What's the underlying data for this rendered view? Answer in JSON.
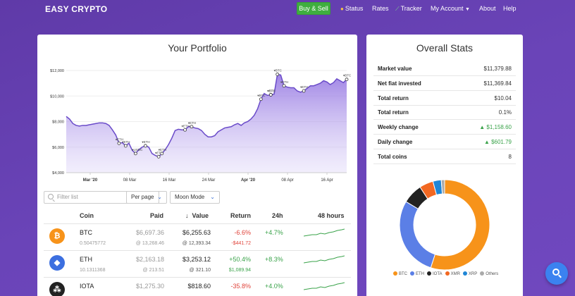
{
  "nav": {
    "brand": "EASY CRYPTO",
    "buy_sell": "Buy & Sell",
    "status": "Status",
    "rates": "Rates",
    "tracker": "Tracker",
    "my_account": "My Account",
    "about": "About",
    "help": "Help"
  },
  "portfolio": {
    "title": "Your Portfolio",
    "filter_placeholder": "Filter list",
    "per_page": "Per page",
    "moon_mode": "Moon Mode",
    "columns": {
      "coin": "Coin",
      "paid": "Paid",
      "value": "Value",
      "return": "Return",
      "h24": "24h",
      "h48": "48 hours"
    },
    "rows": [
      {
        "symbol": "BTC",
        "amount": "0.50475772",
        "paid": "$6,697.36",
        "paid_rate": "@ 13,268.46",
        "value": "$6,255.63",
        "value_rate": "@ 12,393.34",
        "return_pct": "-6.6%",
        "return_amt": "-$441.72",
        "change_24h": "+4.7%",
        "icon": "bitcoin-icon",
        "color": "#f7931a",
        "glyph": "₿"
      },
      {
        "symbol": "ETH",
        "amount": "10.1311368",
        "paid": "$2,163.18",
        "paid_rate": "@ 213.51",
        "value": "$3,253.12",
        "value_rate": "@ 321.10",
        "return_pct": "+50.4%",
        "return_amt": "$1,089.94",
        "change_24h": "+8.3%",
        "icon": "ethereum-icon",
        "color": "#3c6fe0",
        "glyph": "◆"
      },
      {
        "symbol": "IOTA",
        "amount": "",
        "paid": "$1,275.30",
        "paid_rate": "",
        "value": "$818.60",
        "value_rate": "",
        "return_pct": "-35.8%",
        "return_amt": "",
        "change_24h": "+4.0%",
        "icon": "iota-icon",
        "color": "#222222",
        "glyph": "⁂"
      }
    ]
  },
  "stats": {
    "title": "Overall Stats",
    "rows": [
      {
        "label": "Market value",
        "value": "$11,379.88"
      },
      {
        "label": "Net fiat invested",
        "value": "$11,369.84"
      },
      {
        "label": "Total return",
        "value": "$10.04"
      },
      {
        "label": "Total return",
        "value": "0.1%"
      },
      {
        "label": "Weekly change",
        "value": "▲ $1,158.60",
        "up": true
      },
      {
        "label": "Daily change",
        "value": "▲ $601.79",
        "up": true
      },
      {
        "label": "Total coins",
        "value": "8"
      }
    ],
    "legend": [
      {
        "name": "BTC",
        "color": "#f7931a"
      },
      {
        "name": "ETH",
        "color": "#5b7fe6"
      },
      {
        "name": "IOTA",
        "color": "#222222"
      },
      {
        "name": "XMR",
        "color": "#f26822"
      },
      {
        "name": "XRP",
        "color": "#1f86d6"
      },
      {
        "name": "Others",
        "color": "#aaaaaa"
      }
    ],
    "donut": [
      {
        "name": "BTC",
        "value": 55.0
      },
      {
        "name": "ETH",
        "value": 28.6
      },
      {
        "name": "IOTA",
        "value": 7.2
      },
      {
        "name": "XMR",
        "value": 5.0
      },
      {
        "name": "XRP",
        "value": 3.0
      },
      {
        "name": "Others",
        "value": 1.2
      }
    ]
  },
  "chart_data": {
    "type": "area",
    "yticks": [
      "$12,000",
      "$10,000",
      "$8,000",
      "$6,000",
      "$4,000"
    ],
    "xticks": [
      "Mar '20",
      "08 Mar",
      "16 Mar",
      "24 Mar",
      "Apr '20",
      "08 Apr",
      "16 Apr"
    ],
    "ylim": [
      4000,
      12000
    ],
    "values": [
      8400,
      8200,
      7850,
      7700,
      7650,
      7700,
      7700,
      7750,
      7800,
      7850,
      7900,
      7900,
      7850,
      7700,
      7350,
      6950,
      6300,
      6350,
      6100,
      6300,
      5750,
      5500,
      5800,
      6000,
      6100,
      6000,
      5500,
      5350,
      5250,
      5500,
      5800,
      6200,
      6700,
      7300,
      7400,
      7350,
      7350,
      7600,
      7600,
      7500,
      7450,
      7300,
      7000,
      6800,
      6800,
      6900,
      7200,
      7350,
      7500,
      7550,
      7600,
      7750,
      7850,
      7700,
      7900,
      8000,
      8200,
      8500,
      9000,
      9750,
      10200,
      10050,
      10100,
      10150,
      11700,
      11650,
      10800,
      10700,
      10650,
      10650,
      10400,
      10300,
      10400,
      10600,
      10800,
      10800,
      10900,
      11000,
      11200,
      11100,
      10900,
      11050,
      11350,
      11200,
      11050,
      11300
    ],
    "annotations": [
      {
        "label": "▾ETH",
        "i": 16
      },
      {
        "label": "▾ETH",
        "i": 18
      },
      {
        "label": "▾USDC",
        "i": 21
      },
      {
        "label": "▾ETH",
        "i": 24
      },
      {
        "label": "▾ETH",
        "i": 28
      },
      {
        "label": "▾ETH",
        "i": 29
      },
      {
        "label": "▾ETH",
        "i": 36
      },
      {
        "label": "▾ETH",
        "i": 38
      },
      {
        "label": "▾BTC",
        "i": 59
      },
      {
        "label": "▾ETH",
        "i": 62
      },
      {
        "label": "▾BTC",
        "i": 62
      },
      {
        "label": "▾BTC",
        "i": 64
      },
      {
        "label": "▾ETH",
        "i": 66
      },
      {
        "label": "▾ETH",
        "i": 72
      },
      {
        "label": "▾BTC",
        "i": 85
      }
    ]
  }
}
